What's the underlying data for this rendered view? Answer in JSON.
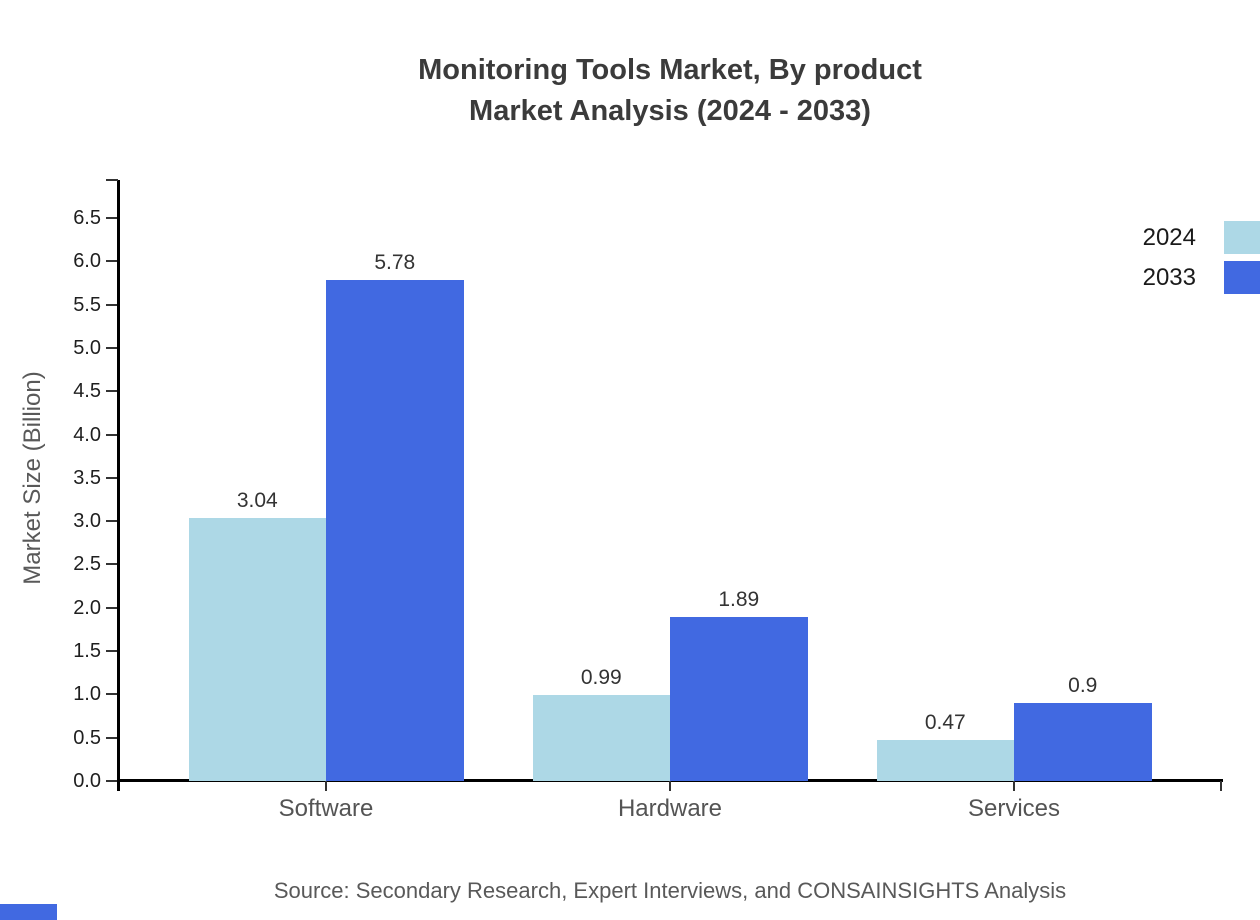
{
  "title": {
    "line1": "Monitoring Tools Market, By product",
    "line2": "Market Analysis (2024 - 2033)"
  },
  "chart_data": {
    "type": "bar",
    "categories": [
      "Software",
      "Hardware",
      "Services"
    ],
    "series": [
      {
        "name": "2024",
        "color": "#ADD8E6",
        "values": [
          3.04,
          0.99,
          0.47
        ],
        "labels": [
          "3.04",
          "0.99",
          "0.47"
        ]
      },
      {
        "name": "2033",
        "color": "#4169E1",
        "values": [
          5.78,
          1.89,
          0.9
        ],
        "labels": [
          "5.78",
          "1.89",
          "0.9"
        ]
      }
    ],
    "title": "Monitoring Tools Market, By product Market Analysis (2024 - 2033)",
    "xlabel": "",
    "ylabel": "Market Size (Billion)",
    "ylim": [
      0,
      6.5
    ],
    "yticks": [
      "0.0",
      "0.5",
      "1.0",
      "1.5",
      "2.0",
      "2.5",
      "3.0",
      "3.5",
      "4.0",
      "4.5",
      "5.0",
      "5.5",
      "6.0",
      "6.5"
    ],
    "grid": false,
    "legend_position": "top-right",
    "value_labels_shown": true
  },
  "legend": {
    "items": [
      {
        "label": "2024",
        "color": "#ADD8E6"
      },
      {
        "label": "2033",
        "color": "#4169E1"
      }
    ]
  },
  "source": "Source: Secondary Research, Expert Interviews, and CONSAINSIGHTS Analysis",
  "colors": {
    "series_2024": "#ADD8E6",
    "series_2033": "#4169E1",
    "title_text": "#3b3b3b",
    "axis_line": "#000000",
    "tick_text": "#1f1f1f",
    "muted_text": "#595959",
    "accent_corner": "#4169E1"
  }
}
